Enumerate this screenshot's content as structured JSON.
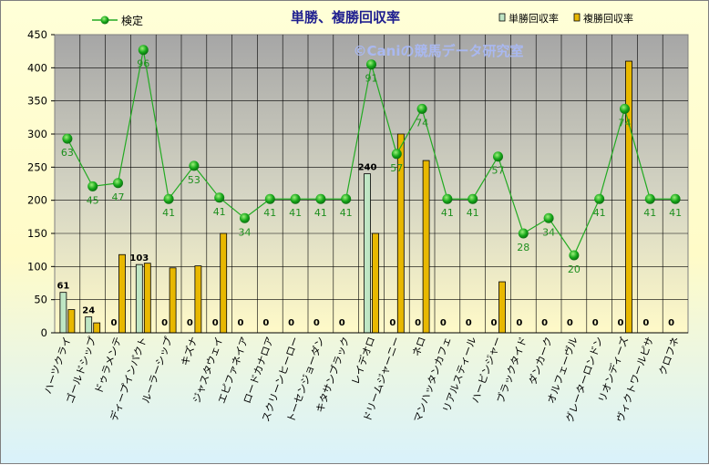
{
  "chart_data": {
    "type": "bar",
    "title": "単勝、複勝回収率",
    "watermark": "©Caniの競馬データ研究室",
    "categories": [
      "ハーツクライ",
      "ゴールドシップ",
      "ドゥラメンテ",
      "ディープインパクト",
      "ルーラーシップ",
      "キズナ",
      "ジャスタウェイ",
      "エピファネイア",
      "ロードカナロア",
      "スクリーンヒーロー",
      "トーセンジョーダン",
      "キタサンブラック",
      "レイデオロ",
      "ドリームジャーニー",
      "ネロ",
      "マンハッタンカフェ",
      "リアルスティール",
      "ハービンジャー",
      "ブラックタイド",
      "ダンカーク",
      "オルフェーヴル",
      "グレーターロンドン",
      "リオンディーズ",
      "ヴィクトワールピサ",
      "クロフネ"
    ],
    "series": [
      {
        "name": "単勝回収率",
        "kind": "bar",
        "color": "#bfe6c4",
        "values": [
          61,
          24,
          0,
          103,
          0,
          0,
          0,
          0,
          0,
          0,
          0,
          0,
          240,
          0,
          0,
          0,
          0,
          0,
          0,
          0,
          0,
          0,
          0,
          0,
          0
        ],
        "labels": [
          "61",
          "24",
          "0",
          "103",
          "0",
          "0",
          "0",
          "0",
          "0",
          "0",
          "0",
          "0",
          "240",
          "0",
          "0",
          "0",
          "0",
          "0",
          "0",
          "0",
          "0",
          "0",
          "0",
          "0",
          "0"
        ]
      },
      {
        "name": "複勝回収率",
        "kind": "bar",
        "color": "#e8b800",
        "values": [
          35,
          15,
          118,
          105,
          98,
          101,
          150,
          0,
          0,
          0,
          0,
          0,
          150,
          300,
          260,
          0,
          0,
          77,
          0,
          0,
          0,
          0,
          410,
          0,
          0
        ]
      },
      {
        "name": "検定",
        "kind": "line",
        "color": "#22aa22",
        "values": [
          293,
          221,
          226,
          427,
          202,
          252,
          204,
          173,
          202,
          202,
          202,
          202,
          405,
          270,
          338,
          202,
          202,
          266,
          150,
          173,
          117,
          202,
          338,
          202,
          202
        ],
        "labels": [
          "63",
          "45",
          "47",
          "96",
          "41",
          "53",
          "41",
          "34",
          "41",
          "41",
          "41",
          "41",
          "91",
          "57",
          "74",
          "41",
          "41",
          "57",
          "28",
          "34",
          "20",
          "41",
          "74",
          "41",
          "41"
        ]
      }
    ],
    "ylim": [
      0,
      450
    ],
    "yticks": [
      "0",
      "50",
      "100",
      "150",
      "200",
      "250",
      "300",
      "350",
      "400",
      "450"
    ],
    "grid": true,
    "legend": {
      "position": "top",
      "line_label": "検定",
      "bar1_label": "単勝回収率",
      "bar2_label": "複勝回収率"
    }
  }
}
